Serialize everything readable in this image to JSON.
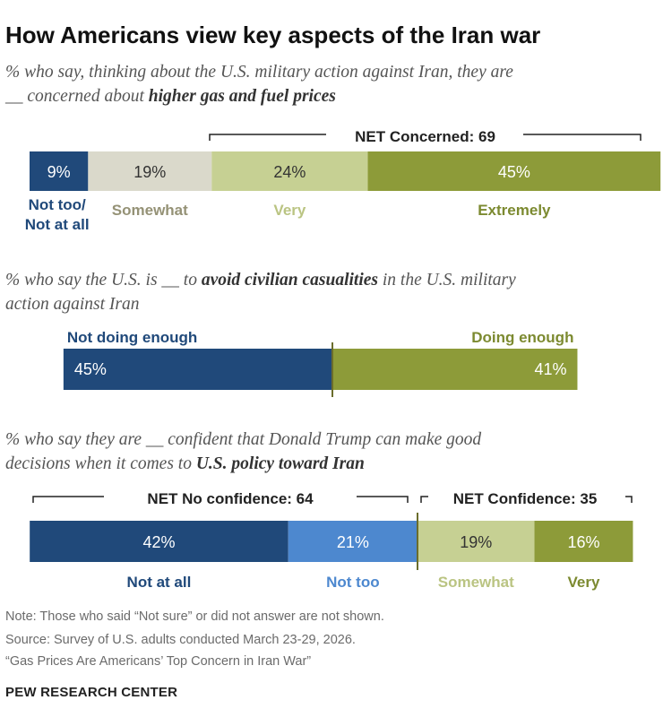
{
  "title": "How Americans view key aspects of the Iran war",
  "colors": {
    "dark_blue": "#20497a",
    "light_blue": "#4d88cf",
    "beige": "#dad9cb",
    "light_olive": "#c6d093",
    "olive": "#8d9b39",
    "beige_text": "#959276",
    "light_olive_text": "#bac482",
    "olive_text": "#7c8a30"
  },
  "chart_data": [
    {
      "type": "bar",
      "subtitle_parts": [
        {
          "text": "% who say, thinking about the U.S. military action against Iran, they are",
          "bold": false
        },
        {
          "text": "__ concerned about ",
          "bold": false
        },
        {
          "text": "higher gas and fuel prices",
          "bold": true
        }
      ],
      "series": [
        {
          "name": "Not too/ Not at all",
          "value": 9,
          "label": "9%"
        },
        {
          "name": "Somewhat",
          "value": 19,
          "label": "19%"
        },
        {
          "name": "Very",
          "value": 24,
          "label": "24%"
        },
        {
          "name": "Extremely",
          "value": 45,
          "label": "45%"
        }
      ],
      "net_labels": [
        "NET Concerned: 69"
      ]
    },
    {
      "type": "bar",
      "subtitle_parts": [
        {
          "text": "% who say the U.S. is __ to ",
          "bold": false
        },
        {
          "text": "avoid civilian casualities",
          "bold": true
        },
        {
          "text": " in the U.S. military",
          "bold": false
        },
        {
          "text": "action against Iran",
          "bold": false
        }
      ],
      "series": [
        {
          "name": "Not doing enough",
          "value": 45,
          "label": "45%"
        },
        {
          "name": "Doing enough",
          "value": 41,
          "label": "41%"
        }
      ]
    },
    {
      "type": "bar",
      "subtitle_parts": [
        {
          "text": "% who say they are __ confident that Donald Trump can make good",
          "bold": false
        },
        {
          "text": "decisions when it comes to ",
          "bold": false
        },
        {
          "text": "U.S. policy toward Iran",
          "bold": true
        }
      ],
      "series": [
        {
          "name": "Not at all",
          "value": 42,
          "label": "42%"
        },
        {
          "name": "Not too",
          "value": 21,
          "label": "21%"
        },
        {
          "name": "Somewhat",
          "value": 19,
          "label": "19%"
        },
        {
          "name": "Very",
          "value": 16,
          "label": "16%"
        }
      ],
      "net_labels": [
        "NET No confidence: 64",
        "NET Confidence: 35"
      ]
    }
  ],
  "note": "Note: Those who said “Not sure” or did not answer are not shown.",
  "source": "Source: Survey of U.S. adults conducted March 23-29, 2026.",
  "report": "“Gas Prices Are Americans’ Top Concern in Iran War”",
  "brand": "PEW RESEARCH CENTER"
}
